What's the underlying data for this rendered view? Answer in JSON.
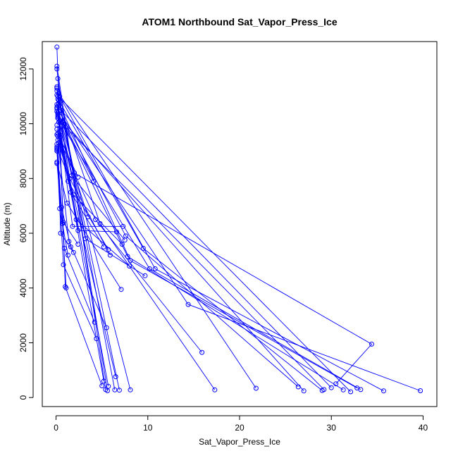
{
  "chart_data": {
    "type": "line",
    "title": "ATOM1 Northbound Sat_Vapor_Press_Ice",
    "xlabel": "Sat_Vapor_Press_Ice",
    "ylabel": "Altitude (m)",
    "xlim": [
      -1.5,
      41.5
    ],
    "ylim": [
      -330,
      13000
    ],
    "xticks": [
      0,
      10,
      20,
      30,
      40
    ],
    "yticks": [
      0,
      2000,
      4000,
      6000,
      8000,
      10000,
      12000
    ],
    "xtick_labels": [
      "0",
      "10",
      "20",
      "30",
      "40"
    ],
    "ytick_labels": [
      "0",
      "2000",
      "4000",
      "6000",
      "8000",
      "10000",
      "12000"
    ],
    "grid": false,
    "series_color": "#0000ff",
    "markers": "open-circle",
    "series": [
      {
        "points": [
          [
            5.0,
            430
          ],
          [
            1.0,
            4050
          ],
          [
            0.1,
            12800
          ]
        ]
      },
      {
        "points": [
          [
            5.4,
            290
          ],
          [
            0.1,
            12100
          ]
        ]
      },
      {
        "points": [
          [
            5.6,
            250
          ],
          [
            0.2,
            11650
          ]
        ]
      },
      {
        "points": [
          [
            6.4,
            280
          ],
          [
            0.1,
            11300
          ]
        ]
      },
      {
        "points": [
          [
            6.9,
            270
          ],
          [
            0.2,
            11000
          ]
        ]
      },
      {
        "points": [
          [
            8.1,
            280
          ],
          [
            0.1,
            10700
          ]
        ]
      },
      {
        "points": [
          [
            5.2,
            600
          ],
          [
            0.1,
            10450
          ]
        ]
      },
      {
        "points": [
          [
            5.7,
            410
          ],
          [
            0.2,
            10200
          ]
        ]
      },
      {
        "points": [
          [
            6.5,
            760
          ],
          [
            0.1,
            9950
          ]
        ]
      },
      {
        "points": [
          [
            17.3,
            280
          ],
          [
            4.8,
            6350
          ],
          [
            0.2,
            10900
          ]
        ]
      },
      {
        "points": [
          [
            21.8,
            340
          ],
          [
            0.3,
            11100
          ]
        ]
      },
      {
        "points": [
          [
            26.4,
            390
          ],
          [
            7.6,
            5900
          ],
          [
            0.1,
            10600
          ]
        ]
      },
      {
        "points": [
          [
            27.0,
            240
          ],
          [
            0.2,
            10300
          ]
        ]
      },
      {
        "points": [
          [
            29.0,
            260
          ],
          [
            9.5,
            5450
          ],
          [
            0.3,
            10850
          ]
        ]
      },
      {
        "points": [
          [
            29.2,
            290
          ],
          [
            0.4,
            10100
          ]
        ]
      },
      {
        "points": [
          [
            30.0,
            360
          ],
          [
            0.5,
            10500
          ]
        ]
      },
      {
        "points": [
          [
            31.3,
            280
          ],
          [
            7.8,
            5150
          ],
          [
            0.2,
            10400
          ]
        ]
      },
      {
        "points": [
          [
            32.1,
            210
          ],
          [
            0.1,
            11050
          ]
        ]
      },
      {
        "points": [
          [
            32.8,
            350
          ],
          [
            8.1,
            5000
          ],
          [
            0.3,
            10750
          ]
        ]
      },
      {
        "points": [
          [
            33.2,
            290
          ],
          [
            10.2,
            4700
          ],
          [
            0.2,
            10200
          ]
        ]
      },
      {
        "points": [
          [
            35.7,
            240
          ],
          [
            10.8,
            4700
          ],
          [
            0.4,
            11000
          ]
        ]
      },
      {
        "points": [
          [
            39.7,
            250
          ],
          [
            14.4,
            3400
          ],
          [
            0.1,
            10550
          ]
        ]
      },
      {
        "points": [
          [
            30.5,
            500
          ],
          [
            34.4,
            1950
          ],
          [
            2.0,
            8200
          ],
          [
            0.1,
            11200
          ]
        ]
      },
      {
        "points": [
          [
            15.9,
            1650
          ],
          [
            4.3,
            6500
          ],
          [
            0.1,
            9600
          ]
        ]
      },
      {
        "points": [
          [
            4.2,
            2750
          ],
          [
            0.9,
            5450
          ],
          [
            0.1,
            9250
          ]
        ]
      },
      {
        "points": [
          [
            4.4,
            2150
          ],
          [
            0.8,
            4850
          ],
          [
            0.1,
            9000
          ]
        ]
      },
      {
        "points": [
          [
            5.5,
            2550
          ],
          [
            1.4,
            5700
          ],
          [
            0.2,
            9400
          ]
        ]
      },
      {
        "points": [
          [
            7.1,
            3950
          ],
          [
            1.2,
            7100
          ],
          [
            0.1,
            8600
          ]
        ]
      },
      {
        "points": [
          [
            3.5,
            6600
          ],
          [
            0.5,
            9700
          ],
          [
            0.1,
            11350
          ]
        ]
      },
      {
        "points": [
          [
            4.1,
            7900
          ],
          [
            0.7,
            10100
          ],
          [
            0.1,
            12000
          ]
        ]
      },
      {
        "points": [
          [
            2.4,
            8050
          ],
          [
            0.2,
            9650
          ]
        ]
      },
      {
        "points": [
          [
            5.2,
            5500
          ],
          [
            1.6,
            7500
          ],
          [
            0.1,
            9800
          ]
        ]
      },
      {
        "points": [
          [
            5.7,
            5400
          ],
          [
            1.3,
            7900
          ],
          [
            0.2,
            10250
          ]
        ]
      },
      {
        "points": [
          [
            5.9,
            5200
          ],
          [
            1.5,
            8000
          ],
          [
            0.1,
            9100
          ]
        ]
      },
      {
        "points": [
          [
            7.2,
            5600
          ],
          [
            1.9,
            7400
          ],
          [
            0.3,
            9300
          ]
        ]
      },
      {
        "points": [
          [
            7.5,
            5750
          ],
          [
            1.7,
            8100
          ],
          [
            0.2,
            10350
          ]
        ]
      },
      {
        "points": [
          [
            6.6,
            6050
          ],
          [
            2.4,
            6100
          ],
          [
            0.6,
            9900
          ]
        ]
      },
      {
        "points": [
          [
            7.3,
            6250
          ],
          [
            1.8,
            6250
          ],
          [
            0.3,
            10050
          ]
        ]
      },
      {
        "points": [
          [
            8.0,
            4800
          ],
          [
            2.2,
            6500
          ],
          [
            0.4,
            9450
          ]
        ]
      },
      {
        "points": [
          [
            9.7,
            4450
          ],
          [
            3.2,
            5800
          ],
          [
            0.3,
            10450
          ]
        ]
      },
      {
        "points": [
          [
            1.1,
            4000
          ],
          [
            0.7,
            6350
          ],
          [
            0.1,
            8550
          ]
        ]
      },
      {
        "points": [
          [
            1.3,
            5200
          ],
          [
            0.4,
            6900
          ],
          [
            0.1,
            9150
          ]
        ]
      },
      {
        "points": [
          [
            1.9,
            5300
          ],
          [
            0.5,
            6000
          ],
          [
            0.2,
            9550
          ]
        ]
      },
      {
        "points": [
          [
            2.4,
            5600
          ],
          [
            0.8,
            6400
          ],
          [
            0.2,
            10650
          ]
        ]
      },
      {
        "points": [
          [
            1.6,
            5500
          ],
          [
            0.6,
            6950
          ],
          [
            0.1,
            9050
          ]
        ]
      }
    ]
  }
}
